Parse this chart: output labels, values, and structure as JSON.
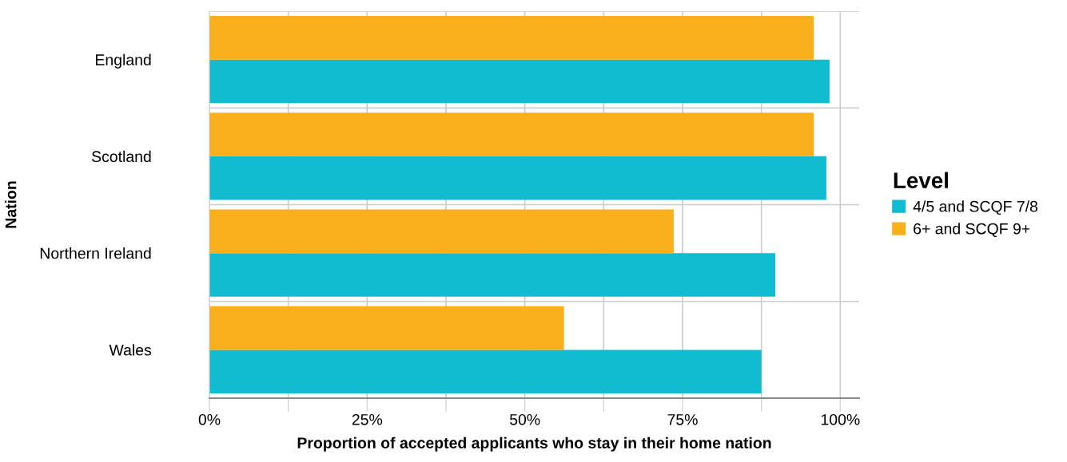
{
  "chart_data": {
    "type": "bar",
    "orientation": "horizontal",
    "xlabel": "Proportion of accepted applicants who stay in their home nation",
    "ylabel": "Nation",
    "legend_title": "Level",
    "categories": [
      "England",
      "Scotland",
      "Northern Ireland",
      "Wales"
    ],
    "series": [
      {
        "name": "4/5 and SCQF 7/8",
        "color": "#11bcd1",
        "values": [
          98.3,
          97.8,
          89.7,
          87.5
        ]
      },
      {
        "name": "6+ and SCQF 9+",
        "color": "#f9ae1c",
        "values": [
          95.8,
          95.8,
          73.6,
          56.2
        ]
      }
    ],
    "xlim": [
      0,
      103
    ],
    "xticks": [
      {
        "value": 0,
        "label": "0%"
      },
      {
        "value": 12.5,
        "label": null
      },
      {
        "value": 25,
        "label": "25%"
      },
      {
        "value": 37.5,
        "label": null
      },
      {
        "value": 50,
        "label": "50%"
      },
      {
        "value": 62.5,
        "label": null
      },
      {
        "value": 75,
        "label": "75%"
      },
      {
        "value": 87.5,
        "label": null
      },
      {
        "value": 100,
        "label": "100%"
      }
    ],
    "grid": true,
    "legend": "right"
  }
}
